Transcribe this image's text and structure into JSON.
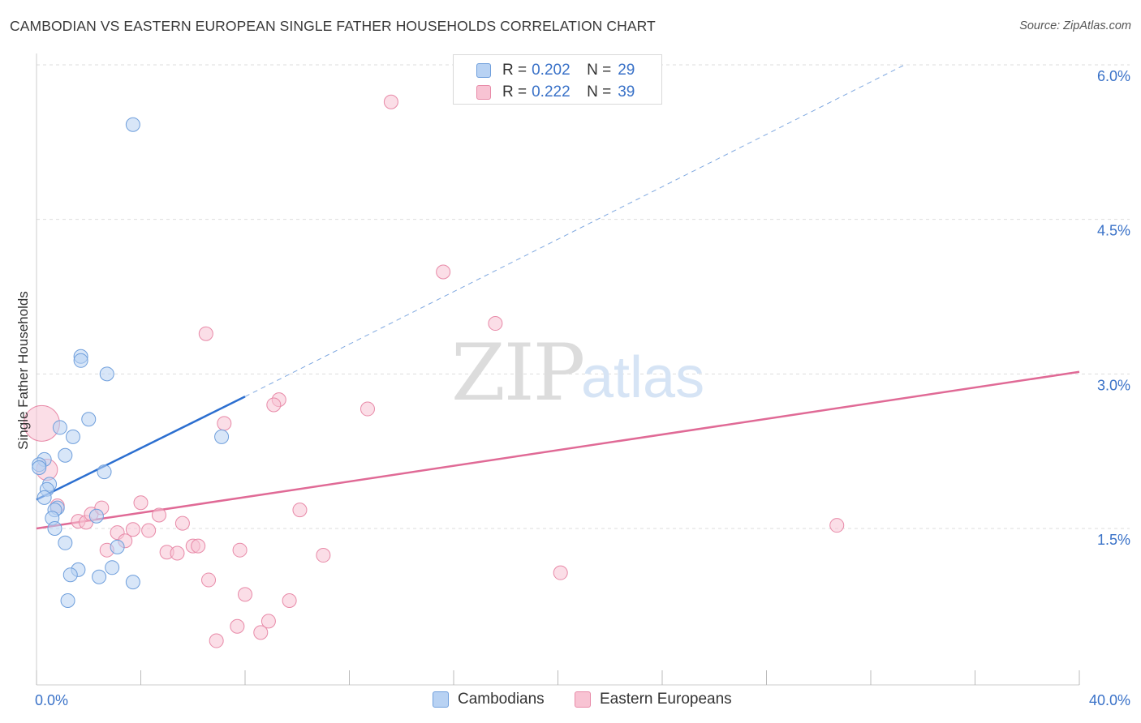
{
  "title": "CAMBODIAN VS EASTERN EUROPEAN SINGLE FATHER HOUSEHOLDS CORRELATION CHART",
  "source": "Source: ZipAtlas.com",
  "watermark": {
    "zip": "ZIP",
    "atlas": "atlas"
  },
  "legend_top": [
    {
      "r_label": "R =",
      "r_value": "0.202",
      "n_label": "N =",
      "n_value": "29"
    },
    {
      "r_label": "R =",
      "r_value": "0.222",
      "n_label": "N =",
      "n_value": "39"
    }
  ],
  "legend_bottom": [
    {
      "label": "Cambodians"
    },
    {
      "label": "Eastern Europeans"
    }
  ],
  "colors": {
    "blue_fill": "#b8d2f3",
    "blue_stroke": "#6f9fdc",
    "blue_line": "#2c6fd0",
    "pink_fill": "#f8c3d3",
    "pink_stroke": "#e88aa8",
    "pink_line": "#e06a96",
    "tick_label": "#3a72c8",
    "grid": "#dddddd"
  },
  "chart_data": {
    "type": "scatter",
    "title": "CAMBODIAN VS EASTERN EUROPEAN SINGLE FATHER HOUSEHOLDS CORRELATION CHART",
    "xlabel": "",
    "ylabel": "Single Father Households",
    "xlim": [
      0,
      40
    ],
    "ylim": [
      0,
      6.2
    ],
    "x_tick_labels": [
      "0.0%",
      "40.0%"
    ],
    "y_ticks": [
      1.5,
      3.0,
      4.5,
      6.0
    ],
    "y_tick_labels": [
      "1.5%",
      "3.0%",
      "4.5%",
      "6.0%"
    ],
    "grid": true,
    "series": [
      {
        "name": "Cambodians",
        "r": 0.202,
        "n": 29,
        "points": [
          [
            3.7,
            5.42
          ],
          [
            1.7,
            3.17
          ],
          [
            1.7,
            3.13
          ],
          [
            2.7,
            3.0
          ],
          [
            2.0,
            2.56
          ],
          [
            0.9,
            2.48
          ],
          [
            1.4,
            2.39
          ],
          [
            7.1,
            2.39
          ],
          [
            1.1,
            2.21
          ],
          [
            0.3,
            2.17
          ],
          [
            0.1,
            2.12
          ],
          [
            0.1,
            2.09
          ],
          [
            2.6,
            2.05
          ],
          [
            0.5,
            1.93
          ],
          [
            0.4,
            1.88
          ],
          [
            0.3,
            1.8
          ],
          [
            0.8,
            1.7
          ],
          [
            0.7,
            1.68
          ],
          [
            2.3,
            1.62
          ],
          [
            0.6,
            1.6
          ],
          [
            0.7,
            1.5
          ],
          [
            1.1,
            1.36
          ],
          [
            3.1,
            1.32
          ],
          [
            1.6,
            1.1
          ],
          [
            1.3,
            1.05
          ],
          [
            2.4,
            1.03
          ],
          [
            2.9,
            1.12
          ],
          [
            3.7,
            0.98
          ],
          [
            1.2,
            0.8
          ]
        ],
        "trend": {
          "x0": 0.0,
          "y0": 1.78,
          "x1": 8.0,
          "y1": 2.78,
          "extend_dashed_to": [
            33.3,
            6.0
          ]
        }
      },
      {
        "name": "Eastern Europeans",
        "r": 0.222,
        "n": 39,
        "points": [
          [
            13.6,
            5.64
          ],
          [
            15.6,
            3.99
          ],
          [
            17.6,
            3.49
          ],
          [
            6.5,
            3.39
          ],
          [
            9.3,
            2.75
          ],
          [
            9.1,
            2.7
          ],
          [
            12.7,
            2.66
          ],
          [
            7.2,
            2.52
          ],
          [
            0.2,
            2.52
          ],
          [
            0.4,
            2.07
          ],
          [
            0.8,
            1.72
          ],
          [
            1.6,
            1.57
          ],
          [
            1.9,
            1.56
          ],
          [
            2.1,
            1.64
          ],
          [
            2.5,
            1.7
          ],
          [
            4.0,
            1.75
          ],
          [
            4.7,
            1.63
          ],
          [
            5.6,
            1.55
          ],
          [
            3.1,
            1.46
          ],
          [
            3.7,
            1.49
          ],
          [
            4.3,
            1.48
          ],
          [
            3.4,
            1.38
          ],
          [
            5.0,
            1.27
          ],
          [
            5.4,
            1.26
          ],
          [
            6.0,
            1.33
          ],
          [
            6.2,
            1.33
          ],
          [
            2.7,
            1.29
          ],
          [
            7.8,
            1.29
          ],
          [
            10.1,
            1.68
          ],
          [
            11.0,
            1.24
          ],
          [
            20.1,
            1.07
          ],
          [
            30.7,
            1.53
          ],
          [
            8.0,
            0.86
          ],
          [
            9.7,
            0.8
          ],
          [
            8.9,
            0.6
          ],
          [
            7.7,
            0.55
          ],
          [
            8.6,
            0.49
          ],
          [
            6.9,
            0.41
          ],
          [
            6.6,
            1.0
          ]
        ],
        "trend": {
          "x0": 0.0,
          "y0": 1.5,
          "x1": 40.0,
          "y1": 3.02
        }
      }
    ]
  }
}
